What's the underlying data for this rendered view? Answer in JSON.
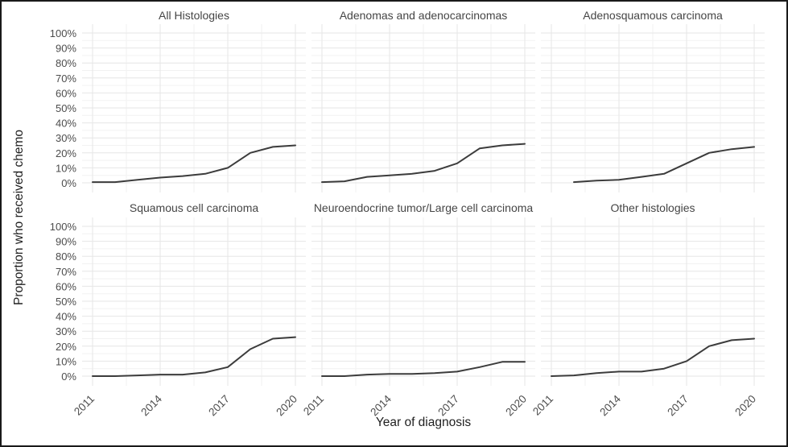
{
  "figure": {
    "background": "#ffffff",
    "border_color": "#1a1a1a"
  },
  "chart_data": {
    "type": "line",
    "title": "",
    "xlabel": "Year of diagnosis",
    "ylabel": "Proportion who received chemo",
    "legend": "none",
    "grid": "white panel background with light gray major gridlines and fainter minor gridlines",
    "xlim": [
      2010.5,
      2020.5
    ],
    "ylim": [
      0,
      100
    ],
    "x_major_ticks": [
      2011,
      2014,
      2017,
      2020
    ],
    "x_minor_ticks": [
      2012.5,
      2015.5,
      2018.5
    ],
    "y_major_ticks": [
      0,
      10,
      20,
      30,
      40,
      50,
      60,
      70,
      80,
      90,
      100
    ],
    "y_minor_ticks": [
      5,
      15,
      25,
      35,
      45,
      55,
      65,
      75,
      85,
      95
    ],
    "y_tick_labels": [
      "0%",
      "10%",
      "20%",
      "30%",
      "40%",
      "50%",
      "60%",
      "70%",
      "80%",
      "90%",
      "100%"
    ],
    "x_tick_labels": [
      "2011",
      "2014",
      "2017",
      "2020"
    ],
    "line_color": "#3c3c3c",
    "major_grid_color": "#e6e6e6",
    "minor_grid_color": "#f2f2f2",
    "tick_label_color": "#4d4d4d",
    "facet_layout": [
      [
        "All Histologies",
        "Adenomas and adenocarcinomas",
        "Adenosquamous carcinoma"
      ],
      [
        "Squamous cell carcinoma",
        "Neuroendocrine tumor/Large cell carcinoma",
        "Other histologies"
      ]
    ],
    "facets": [
      {
        "title": "All Histologies",
        "years": [
          2011,
          2012,
          2013,
          2014,
          2015,
          2016,
          2017,
          2018,
          2019,
          2020
        ],
        "values_percent": [
          0.5,
          0.5,
          2,
          3.5,
          4.5,
          6,
          10,
          20,
          24,
          25
        ]
      },
      {
        "title": "Adenomas and adenocarcinomas",
        "years": [
          2011,
          2012,
          2013,
          2014,
          2015,
          2016,
          2017,
          2018,
          2019,
          2020
        ],
        "values_percent": [
          0.5,
          1,
          4,
          5,
          6,
          8,
          13,
          23,
          25,
          26
        ]
      },
      {
        "title": "Adenosquamous carcinoma",
        "years": [
          2012,
          2013,
          2014,
          2015,
          2016,
          2017,
          2018,
          2019,
          2020
        ],
        "values_percent": [
          0.5,
          1.5,
          2,
          4,
          6,
          13,
          20,
          22.5,
          24
        ]
      },
      {
        "title": "Squamous cell carcinoma",
        "years": [
          2011,
          2012,
          2013,
          2014,
          2015,
          2016,
          2017,
          2018,
          2019,
          2020
        ],
        "values_percent": [
          0,
          0,
          0.5,
          1,
          1,
          2.5,
          6,
          18,
          25,
          26
        ]
      },
      {
        "title": "Neuroendocrine tumor/Large cell carcinoma",
        "years": [
          2011,
          2012,
          2013,
          2014,
          2015,
          2016,
          2017,
          2018,
          2019,
          2020
        ],
        "values_percent": [
          0,
          0,
          1,
          1.5,
          1.5,
          2,
          3,
          6,
          9.5,
          9.5
        ]
      },
      {
        "title": "Other histologies",
        "years": [
          2011,
          2012,
          2013,
          2014,
          2015,
          2016,
          2017,
          2018,
          2019,
          2020
        ],
        "values_percent": [
          0,
          0.5,
          2,
          3,
          3,
          5,
          10,
          20,
          24,
          25
        ]
      }
    ]
  }
}
